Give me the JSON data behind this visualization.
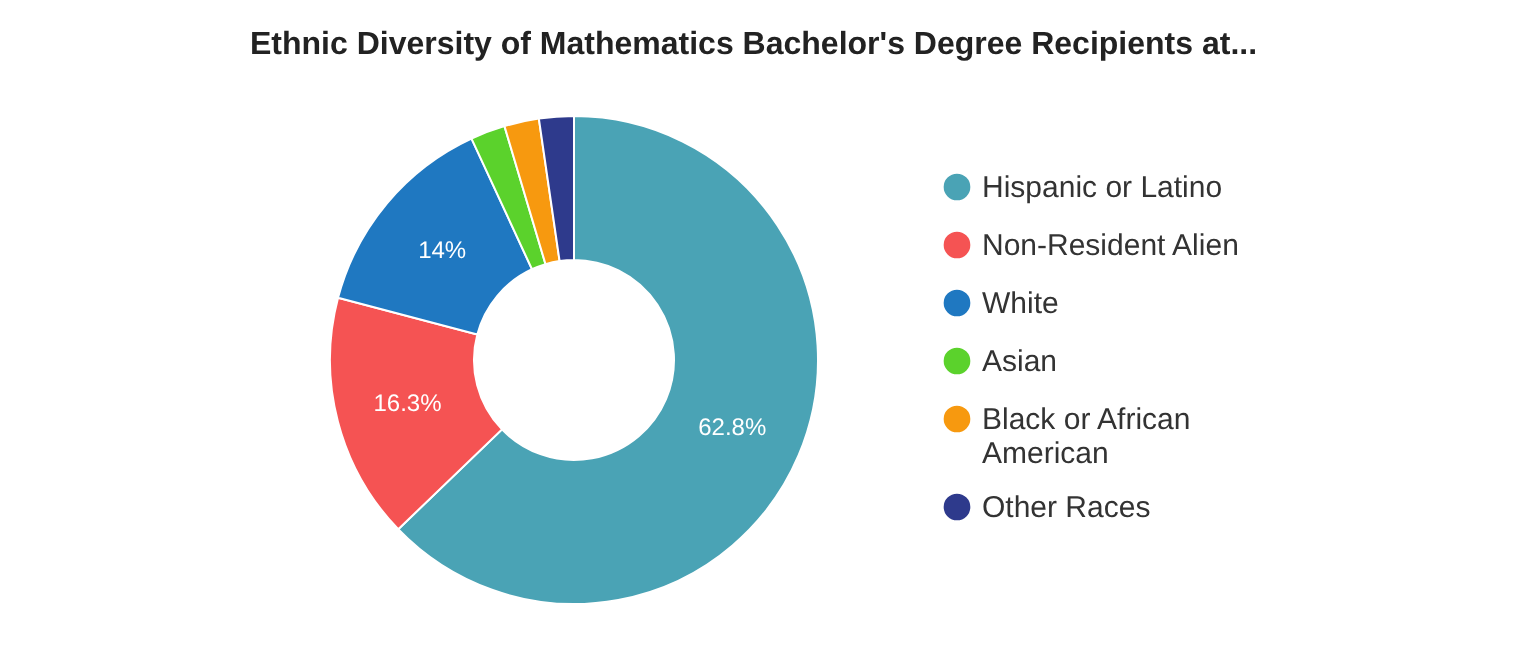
{
  "chart_data": {
    "type": "donut",
    "title": "Ethnic Diversity of Mathematics Bachelor's Degree Recipients at...",
    "categories": [
      "Hispanic or Latino",
      "Non-Resident Alien",
      "White",
      "Asian",
      "Black or African American",
      "Other Races"
    ],
    "values": [
      62.8,
      16.3,
      14,
      2.3,
      2.3,
      2.3
    ],
    "colors": [
      "#4aa3b5",
      "#f55353",
      "#1f78c1",
      "#5bd22c",
      "#f7990f",
      "#2e3a8c"
    ],
    "value_labels": [
      "62.8%",
      "16.3%",
      "14%",
      null,
      null,
      null
    ],
    "legend": "right"
  }
}
